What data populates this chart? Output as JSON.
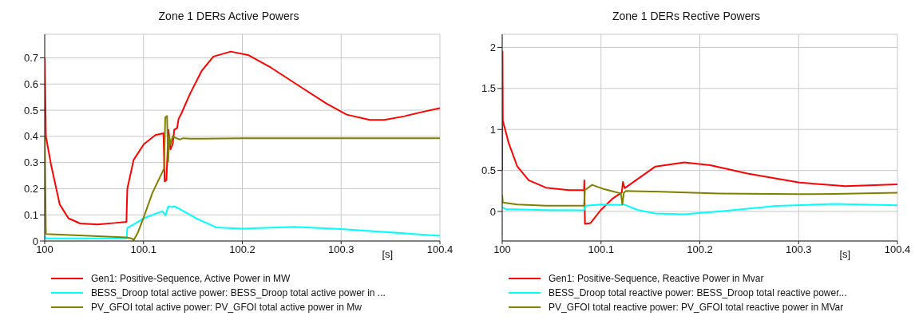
{
  "chart_data": [
    {
      "type": "line",
      "title": "Zone 1 DERs Active Powers",
      "xlabel": "[s]",
      "xlim": [
        100,
        100.4
      ],
      "xticks": [
        100,
        100.1,
        100.2,
        100.3,
        100.4
      ],
      "ylim": [
        0,
        0.79
      ],
      "yticks": [
        0,
        0.1,
        0.2,
        0.3,
        0.4,
        0.5,
        0.6,
        0.7
      ],
      "grid": true,
      "legend": "bottom",
      "marker": "none",
      "line_style": "solid",
      "series": [
        {
          "name": "Gen1: Positive-Sequence, Active Power in MW",
          "color": "#ff0000",
          "x": [
            100,
            100.0012,
            100.0065,
            100.0152,
            100.024,
            100.0358,
            100.0534,
            100.071,
            100.0827,
            100.0836,
            100.09,
            100.1003,
            100.112,
            100.1202,
            100.1214,
            100.1232,
            100.1252,
            100.1273,
            100.1296,
            100.1311,
            100.134,
            100.1355,
            100.1384,
            100.1472,
            100.159,
            100.1707,
            100.1883,
            100.2059,
            100.2293,
            100.2557,
            100.285,
            100.3056,
            100.329,
            100.3437,
            100.3642,
            100.3818,
            100.4
          ],
          "values": [
            0.7,
            0.4,
            0.29,
            0.14,
            0.087,
            0.067,
            0.063,
            0.069,
            0.073,
            0.2,
            0.31,
            0.37,
            0.405,
            0.412,
            0.228,
            0.233,
            0.425,
            0.35,
            0.372,
            0.425,
            0.432,
            0.467,
            0.488,
            0.564,
            0.651,
            0.705,
            0.724,
            0.711,
            0.662,
            0.597,
            0.526,
            0.483,
            0.463,
            0.463,
            0.477,
            0.493,
            0.508
          ]
        },
        {
          "name": "BESS_Droop total active power: BESS_Droop total active power in ...",
          "color": "#00ffff",
          "x": [
            100,
            100.001,
            100.083,
            100.0836,
            100.0915,
            100.1003,
            100.119,
            100.1223,
            100.125,
            100.128,
            100.1311,
            100.1355,
            100.153,
            100.1736,
            100.2,
            100.2528,
            100.2997,
            100.4
          ],
          "values": [
            0.02,
            0.01,
            0.01,
            0.05,
            0.067,
            0.087,
            0.114,
            0.098,
            0.132,
            0.13,
            0.132,
            0.125,
            0.087,
            0.052,
            0.047,
            0.054,
            0.046,
            0.02
          ]
        },
        {
          "name": "PV_GFOI total active power: PV_GFOI total active power in Mw",
          "color": "#808000",
          "x": [
            100,
            100.0012,
            100.0827,
            100.0886,
            100.09,
            100.0944,
            100.1003,
            100.1091,
            100.1208,
            100.122,
            100.1238,
            100.125,
            100.1261,
            100.1273,
            100.1296,
            100.1331,
            100.1369,
            100.1399,
            100.1472,
            100.2,
            100.4
          ],
          "values": [
            0.4,
            0.027,
            0.014,
            0.009,
            0.003,
            0.033,
            0.092,
            0.185,
            0.277,
            0.472,
            0.478,
            0.304,
            0.4,
            0.368,
            0.4,
            0.393,
            0.388,
            0.393,
            0.391,
            0.393,
            0.393
          ]
        }
      ]
    },
    {
      "type": "line",
      "title": "Zone 1 DERs Rective Powers",
      "xlabel": "[s]",
      "xlim": [
        100,
        100.4
      ],
      "xticks": [
        100,
        100.1,
        100.2,
        100.3,
        100.4
      ],
      "ylim": [
        -0.36,
        2.16
      ],
      "yticks": [
        0,
        0.5,
        1,
        1.5,
        2
      ],
      "grid": true,
      "legend": "bottom",
      "marker": "none",
      "line_style": "solid",
      "series": [
        {
          "name": "Gen1: Positive-Sequence, Reactive Power in Mvar",
          "color": "#ff0000",
          "x": [
            100,
            100.0003,
            100.0006,
            100.0064,
            100.0152,
            100.0268,
            100.0443,
            100.0676,
            100.0828,
            100.0831,
            100.0837,
            100.0895,
            100.0997,
            100.1114,
            100.121,
            100.1222,
            100.1239,
            100.1376,
            100.155,
            100.1843,
            100.2105,
            100.2484,
            100.3009,
            100.3475,
            100.4
          ],
          "values": [
            0.5,
            1.95,
            1.11,
            0.84,
            0.55,
            0.38,
            0.29,
            0.26,
            0.26,
            0.38,
            -0.15,
            -0.14,
            0.017,
            0.154,
            0.233,
            0.36,
            0.284,
            0.4,
            0.548,
            0.599,
            0.565,
            0.462,
            0.353,
            0.308,
            0.332
          ]
        },
        {
          "name": "BESS_Droop total reactive power: BESS_Droop total reactive power...",
          "color": "#00ffff",
          "x": [
            100,
            100.0035,
            100.0443,
            100.0828,
            100.0843,
            100.0997,
            100.12,
            100.1229,
            100.1376,
            100.155,
            100.1843,
            100.2192,
            100.2776,
            100.3359,
            100.4
          ],
          "values": [
            0.05,
            0.03,
            0.017,
            0.014,
            0.07,
            0.086,
            0.08,
            0.086,
            0.017,
            -0.024,
            -0.034,
            0,
            0.068,
            0.092,
            0.075
          ]
        },
        {
          "name": "PV_GFOI total reactive power: PV_GFOI total reactive power in MVar",
          "color": "#808000",
          "x": [
            100,
            100.0006,
            100.0152,
            100.0443,
            100.0828,
            100.0837,
            100.091,
            100.1026,
            100.1201,
            100.1216,
            100.1231,
            100.1254,
            100.1318,
            100.1609,
            100.2192,
            100.3009,
            100.3359,
            100.4
          ],
          "values": [
            0.2,
            0.11,
            0.086,
            0.07,
            0.07,
            0.26,
            0.325,
            0.274,
            0.22,
            0.086,
            0.23,
            0.25,
            0.247,
            0.24,
            0.22,
            0.212,
            0.214,
            0.229
          ]
        }
      ]
    }
  ]
}
